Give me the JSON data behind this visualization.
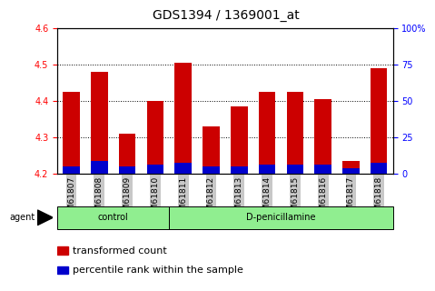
{
  "title": "GDS1394 / 1369001_at",
  "samples": [
    "GSM61807",
    "GSM61808",
    "GSM61809",
    "GSM61810",
    "GSM61811",
    "GSM61812",
    "GSM61813",
    "GSM61814",
    "GSM61815",
    "GSM61816",
    "GSM61817",
    "GSM61818"
  ],
  "transformed_count": [
    4.425,
    4.48,
    4.31,
    4.4,
    4.505,
    4.33,
    4.385,
    4.425,
    4.425,
    4.405,
    4.235,
    4.49
  ],
  "percentile_rank": [
    0.02,
    0.035,
    0.02,
    0.025,
    0.03,
    0.02,
    0.02,
    0.025,
    0.025,
    0.025,
    0.015,
    0.03
  ],
  "ymin": 4.2,
  "ymax": 4.6,
  "yticks": [
    4.2,
    4.3,
    4.4,
    4.5,
    4.6
  ],
  "right_yticks": [
    0,
    25,
    50,
    75,
    100
  ],
  "right_ytick_labels": [
    "0",
    "25",
    "50",
    "75",
    "100%"
  ],
  "bar_color": "#cc0000",
  "blue_color": "#0000cc",
  "bar_width": 0.6,
  "control_count": 4,
  "dpenicillamine_count": 8,
  "control_label": "control",
  "dpenicillamine_label": "D-penicillamine",
  "agent_label": "agent",
  "legend_red_label": "transformed count",
  "legend_blue_label": "percentile rank within the sample",
  "group_bg_color": "#90ee90",
  "tick_bg_color": "#c8c8c8",
  "plot_bg_color": "#ffffff",
  "title_fontsize": 10,
  "tick_fontsize": 7,
  "label_fontsize": 8,
  "xtick_fontsize": 6.5
}
